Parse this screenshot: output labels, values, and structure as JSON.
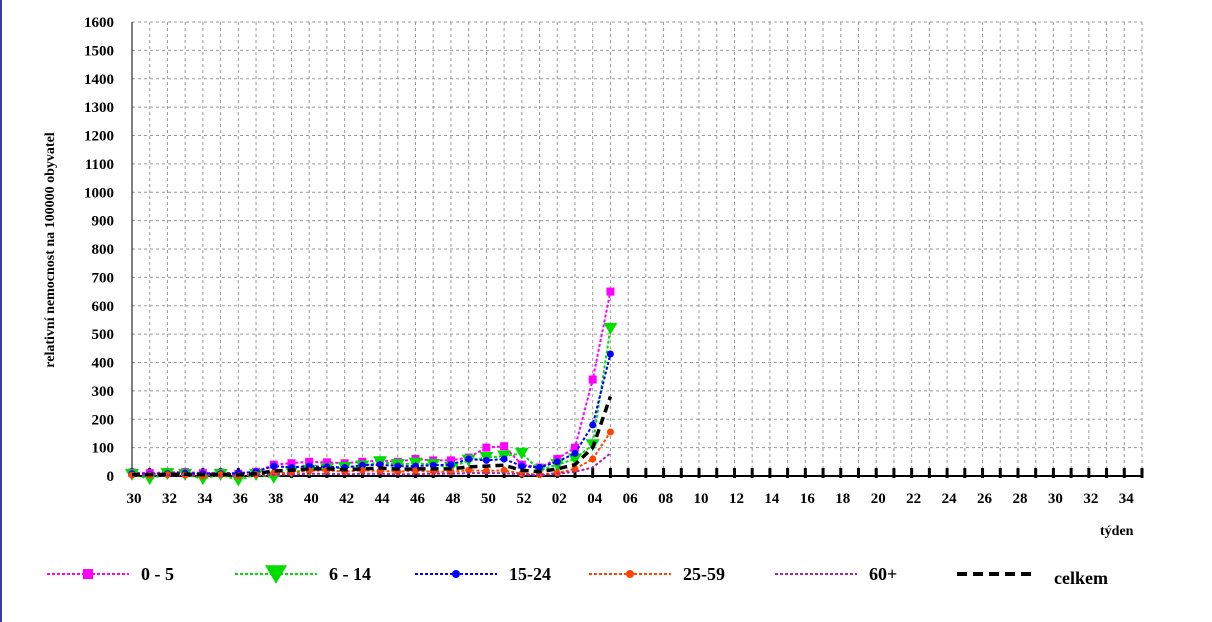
{
  "chart_data": {
    "type": "line",
    "ylabel": "relativní nemocnost na 100000 obyvatel",
    "xlabel": "týden",
    "ylim": [
      0,
      1600
    ],
    "yticks": [
      0,
      100,
      200,
      300,
      400,
      500,
      600,
      700,
      800,
      900,
      1000,
      1100,
      1200,
      1300,
      1400,
      1500,
      1600
    ],
    "weeks": [
      "30",
      "31",
      "32",
      "33",
      "34",
      "35",
      "36",
      "37",
      "38",
      "39",
      "40",
      "41",
      "42",
      "43",
      "44",
      "45",
      "46",
      "47",
      "48",
      "49",
      "50",
      "51",
      "52",
      "01",
      "02",
      "03",
      "04",
      "05",
      "06",
      "07",
      "08",
      "09",
      "10",
      "11",
      "12",
      "13",
      "14",
      "15",
      "16",
      "17",
      "18",
      "19",
      "20",
      "21",
      "22",
      "23",
      "24",
      "25",
      "26",
      "27",
      "28",
      "29",
      "30",
      "31",
      "32",
      "33",
      "34",
      "35"
    ],
    "tick_labels": [
      "30",
      "32",
      "34",
      "36",
      "38",
      "40",
      "42",
      "44",
      "46",
      "48",
      "50",
      "52",
      "02",
      "04",
      "06",
      "08",
      "10",
      "12",
      "14",
      "16",
      "18",
      "20",
      "22",
      "24",
      "26",
      "28",
      "30",
      "32",
      "34"
    ],
    "grid": true,
    "legend_position": "bottom",
    "series": [
      {
        "name": "0 - 5",
        "color": "#ff00ff",
        "marker": "square",
        "values": [
          12,
          10,
          13,
          14,
          10,
          12,
          8,
          15,
          40,
          45,
          50,
          48,
          45,
          50,
          55,
          50,
          60,
          55,
          55,
          65,
          100,
          105,
          40,
          30,
          60,
          100,
          340,
          650
        ]
      },
      {
        "name": "6 - 14",
        "color": "#00dd00",
        "marker": "triangle",
        "values": [
          5,
          -10,
          8,
          5,
          -10,
          5,
          -15,
          5,
          -5,
          15,
          20,
          25,
          30,
          35,
          50,
          40,
          45,
          40,
          30,
          55,
          65,
          70,
          80,
          20,
          40,
          60,
          110,
          520
        ]
      },
      {
        "name": "15-24",
        "color": "#0000ff",
        "marker": "circle",
        "values": [
          8,
          5,
          8,
          10,
          8,
          8,
          10,
          15,
          35,
          30,
          35,
          32,
          30,
          38,
          40,
          35,
          35,
          38,
          40,
          60,
          55,
          60,
          35,
          30,
          50,
          80,
          180,
          430
        ]
      },
      {
        "name": "25-59",
        "color": "#ff4400",
        "marker": "circle",
        "values": [
          3,
          2,
          5,
          3,
          0,
          5,
          0,
          5,
          10,
          12,
          18,
          20,
          15,
          20,
          18,
          15,
          18,
          15,
          15,
          20,
          18,
          20,
          8,
          5,
          10,
          25,
          60,
          155
        ]
      },
      {
        "name": "60+",
        "color": "#aa22aa",
        "marker": "none",
        "values": [
          2,
          2,
          2,
          2,
          2,
          2,
          2,
          3,
          5,
          5,
          8,
          8,
          6,
          8,
          8,
          6,
          6,
          8,
          8,
          10,
          10,
          10,
          5,
          3,
          8,
          15,
          30,
          80
        ]
      },
      {
        "name": "celkem",
        "color": "#000000",
        "marker": "none",
        "values": [
          5,
          5,
          6,
          6,
          5,
          6,
          4,
          8,
          18,
          20,
          25,
          25,
          22,
          25,
          28,
          24,
          25,
          25,
          25,
          32,
          35,
          38,
          20,
          15,
          25,
          40,
          100,
          280
        ]
      }
    ]
  }
}
